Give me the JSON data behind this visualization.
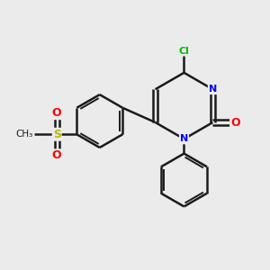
{
  "background_color": "#ebebeb",
  "bond_color": "#1a1a1a",
  "N_color": "#0000ff",
  "O_color": "#ff0000",
  "S_color": "#b8b800",
  "Cl_color": "#00bb00",
  "figsize": [
    3.0,
    3.0
  ],
  "dpi": 100,
  "xlim": [
    0,
    10
  ],
  "ylim": [
    0,
    10
  ]
}
